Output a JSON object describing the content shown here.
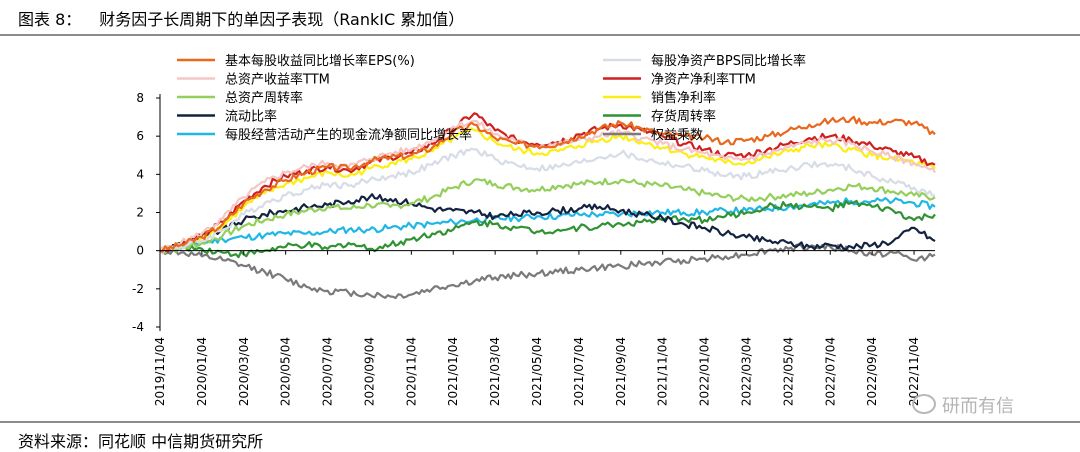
{
  "header": {
    "figure_label": "图表 8：",
    "title": "财务因子长周期下的单因子表现（RankIC 累加值）"
  },
  "footer": {
    "source": "资料来源：同花顺 中信期货研究所"
  },
  "watermark": {
    "text": "研而有信",
    "icon": "wechat-icon"
  },
  "chart_data": {
    "type": "line",
    "title": "财务因子长周期下的单因子表现（RankIC 累加值）",
    "xlabel": "",
    "ylabel": "",
    "ylim": [
      -4,
      8
    ],
    "yticks": [
      "-4",
      "-2",
      "0",
      "2",
      "4",
      "6",
      "8"
    ],
    "grid": false,
    "legend_position": "top",
    "x": [
      "2019/11/04",
      "2019/12/04",
      "2020/01/04",
      "2020/02/04",
      "2020/03/04",
      "2020/04/04",
      "2020/05/04",
      "2020/06/04",
      "2020/07/04",
      "2020/08/04",
      "2020/09/04",
      "2020/10/04",
      "2020/11/04",
      "2020/12/04",
      "2021/01/04",
      "2021/02/04",
      "2021/03/04",
      "2021/04/04",
      "2021/05/04",
      "2021/06/04",
      "2021/07/04",
      "2021/08/04",
      "2021/09/04",
      "2021/10/04",
      "2021/11/04",
      "2021/12/04",
      "2022/01/04",
      "2022/02/04",
      "2022/03/04",
      "2022/04/04",
      "2022/05/04",
      "2022/06/04",
      "2022/07/04",
      "2022/08/04",
      "2022/09/04",
      "2022/10/04",
      "2022/11/04",
      "2022/12/04"
    ],
    "xtick_labels": [
      "2019/11/04",
      "2020/01/04",
      "2020/03/04",
      "2020/05/04",
      "2020/07/04",
      "2020/09/04",
      "2020/11/04",
      "2021/01/04",
      "2021/03/04",
      "2021/05/04",
      "2021/07/04",
      "2021/09/04",
      "2021/11/04",
      "2022/01/04",
      "2022/03/04",
      "2022/05/04",
      "2022/07/04",
      "2022/09/04",
      "2022/11/04"
    ],
    "series": [
      {
        "name": "基本每股收益同比增长率EPS(%)",
        "color": "#e8681e",
        "values": [
          0,
          0.3,
          0.7,
          1.4,
          2.5,
          3.2,
          3.7,
          4.1,
          4.4,
          4.3,
          4.7,
          4.9,
          5.0,
          5.4,
          6.2,
          6.6,
          5.9,
          5.6,
          5.5,
          5.6,
          6.0,
          6.4,
          6.7,
          6.4,
          6.1,
          6.0,
          5.9,
          5.7,
          5.8,
          6.0,
          6.3,
          6.6,
          6.8,
          6.9,
          6.7,
          6.8,
          6.7,
          6.1
        ]
      },
      {
        "name": "每股净资产BPS同比增长率",
        "color": "#d7dce6",
        "values": [
          0,
          0.2,
          0.5,
          1.1,
          1.9,
          2.5,
          2.9,
          3.2,
          3.5,
          3.4,
          3.7,
          3.9,
          4.1,
          4.5,
          5.0,
          5.3,
          4.8,
          4.5,
          4.3,
          4.4,
          4.6,
          4.9,
          5.1,
          4.8,
          4.6,
          4.4,
          4.2,
          3.9,
          3.9,
          4.1,
          4.3,
          4.5,
          4.5,
          4.3,
          3.9,
          3.6,
          3.3,
          2.9
        ]
      },
      {
        "name": "总资产收益率TTM",
        "color": "#f4c6c6",
        "values": [
          0,
          0.4,
          0.9,
          1.7,
          2.8,
          3.6,
          4.1,
          4.4,
          4.6,
          4.4,
          4.8,
          5.1,
          5.3,
          5.8,
          6.5,
          6.8,
          6.1,
          5.7,
          5.5,
          5.6,
          5.8,
          6.0,
          6.2,
          5.9,
          5.6,
          5.3,
          5.1,
          4.8,
          4.8,
          5.1,
          5.4,
          5.7,
          5.8,
          5.6,
          5.2,
          4.9,
          4.6,
          4.1
        ]
      },
      {
        "name": "净资产净利率TTM",
        "color": "#d01f1f",
        "values": [
          0,
          0.3,
          0.8,
          1.5,
          2.6,
          3.4,
          3.9,
          4.2,
          4.4,
          4.2,
          4.6,
          4.9,
          5.1,
          5.6,
          6.4,
          7.2,
          6.3,
          5.8,
          5.6,
          5.7,
          6.1,
          6.4,
          6.6,
          6.3,
          6.0,
          5.6,
          5.3,
          5.0,
          5.0,
          5.3,
          5.6,
          5.9,
          6.0,
          5.8,
          5.5,
          5.2,
          4.9,
          4.5
        ]
      },
      {
        "name": "总资产周转率",
        "color": "#93cf5a",
        "values": [
          0,
          0.1,
          0.4,
          0.8,
          1.3,
          1.6,
          1.9,
          2.1,
          2.3,
          2.2,
          2.4,
          2.3,
          2.5,
          2.8,
          3.3,
          3.7,
          3.5,
          3.3,
          3.2,
          3.4,
          3.5,
          3.6,
          3.7,
          3.5,
          3.4,
          3.2,
          3.0,
          2.8,
          2.7,
          2.8,
          2.9,
          3.0,
          3.2,
          3.4,
          3.3,
          3.1,
          2.9,
          2.8
        ]
      },
      {
        "name": "销售净利率",
        "color": "#fbee12",
        "values": [
          0,
          0.3,
          0.7,
          1.3,
          2.3,
          3.0,
          3.5,
          3.8,
          4.1,
          3.9,
          4.3,
          4.6,
          4.8,
          5.2,
          5.9,
          6.3,
          5.7,
          5.3,
          5.1,
          5.2,
          5.5,
          5.8,
          6.0,
          5.7,
          5.4,
          5.1,
          4.9,
          4.6,
          4.6,
          4.9,
          5.2,
          5.5,
          5.5,
          5.3,
          5.0,
          4.8,
          4.6,
          4.3
        ]
      },
      {
        "name": "流动比率",
        "color": "#13233f",
        "values": [
          0,
          0.4,
          0.7,
          1.1,
          1.6,
          1.9,
          2.1,
          2.3,
          2.4,
          2.6,
          2.8,
          2.7,
          2.5,
          2.2,
          2.1,
          2.0,
          1.8,
          1.9,
          2.0,
          2.1,
          2.2,
          2.3,
          2.1,
          1.9,
          1.7,
          1.4,
          1.2,
          0.9,
          0.7,
          0.5,
          0.4,
          0.2,
          0.3,
          0.2,
          0.3,
          0.5,
          1.2,
          0.5
        ]
      },
      {
        "name": "存货周转率",
        "color": "#2f9333",
        "values": [
          0,
          0.2,
          0.1,
          -0.1,
          -0.2,
          0.0,
          0.2,
          0.3,
          0.1,
          0.4,
          0.1,
          0.3,
          0.6,
          0.9,
          1.1,
          1.5,
          1.4,
          1.2,
          1.0,
          1.1,
          1.2,
          1.3,
          1.4,
          1.5,
          1.6,
          1.7,
          1.6,
          1.8,
          2.0,
          2.3,
          2.4,
          2.3,
          2.2,
          2.5,
          2.3,
          2.1,
          1.6,
          1.9
        ]
      },
      {
        "name": "每股经营活动产生的现金流净额同比增长率",
        "color": "#1fb7e6",
        "values": [
          0,
          0.2,
          0.4,
          0.6,
          0.7,
          0.8,
          0.9,
          0.9,
          1.0,
          1.1,
          1.1,
          1.2,
          1.3,
          1.4,
          1.5,
          1.6,
          1.7,
          1.7,
          1.8,
          1.8,
          1.9,
          1.9,
          1.9,
          2.0,
          2.0,
          2.0,
          2.0,
          2.1,
          2.1,
          2.2,
          2.3,
          2.4,
          2.5,
          2.6,
          2.6,
          2.6,
          2.5,
          2.3
        ]
      },
      {
        "name": "权益乘数",
        "color": "#7a7a7a",
        "values": [
          0,
          -0.1,
          -0.3,
          -0.5,
          -0.8,
          -1.1,
          -1.5,
          -1.9,
          -2.1,
          -2.2,
          -2.3,
          -2.4,
          -2.3,
          -2.0,
          -1.8,
          -1.6,
          -1.4,
          -1.3,
          -1.2,
          -1.1,
          -1.0,
          -0.9,
          -0.8,
          -0.7,
          -0.6,
          -0.5,
          -0.4,
          -0.3,
          -0.2,
          0.0,
          0.1,
          0.2,
          0.2,
          0.0,
          -0.2,
          -0.1,
          -0.5,
          -0.2
        ]
      }
    ]
  }
}
